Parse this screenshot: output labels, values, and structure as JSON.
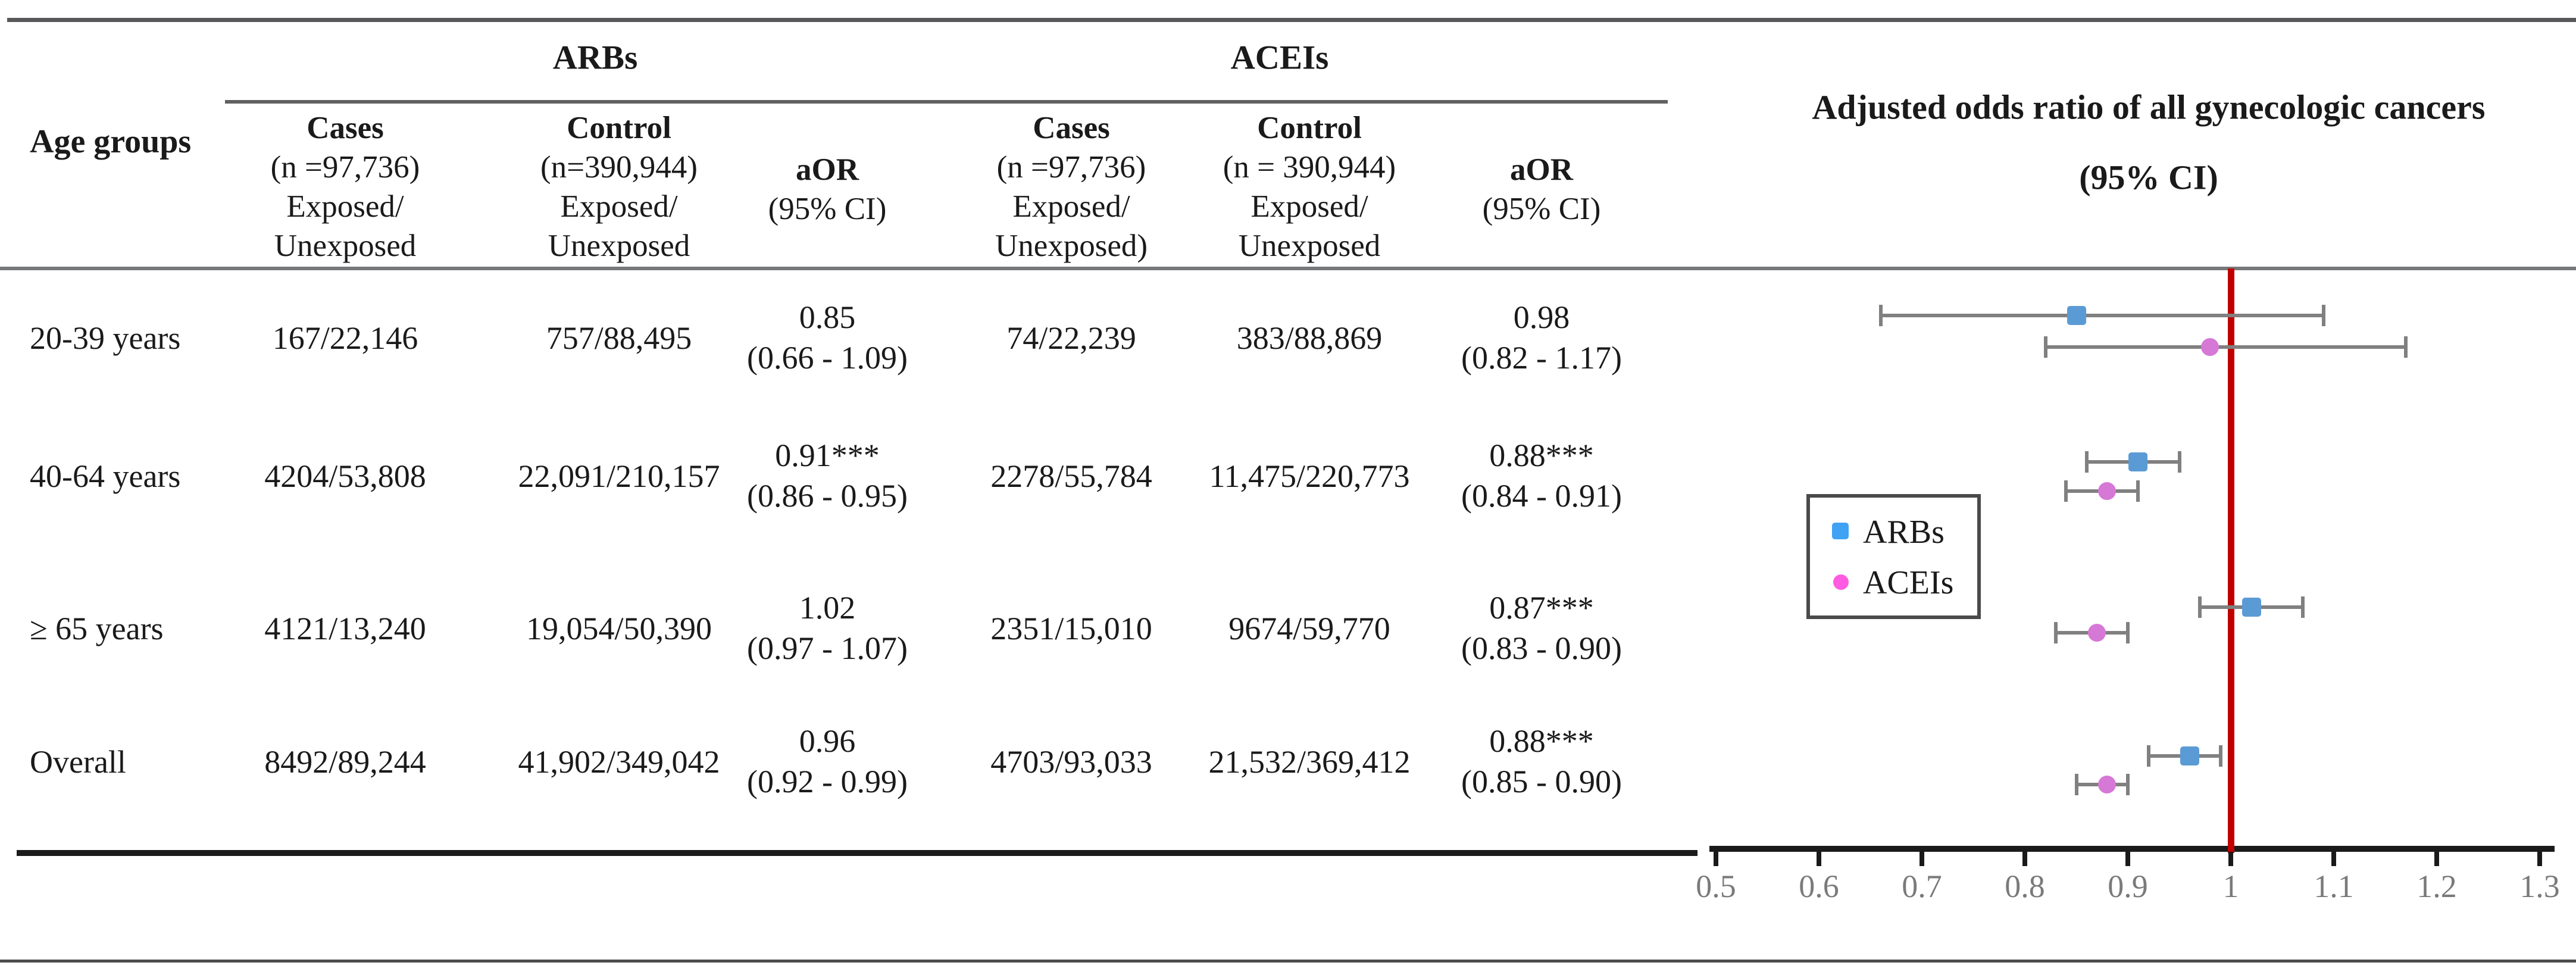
{
  "table": {
    "age_groups_header": "Age groups",
    "group_headers": {
      "arbs": "ARBs",
      "aceis": "ACEIs"
    },
    "columns": {
      "arb_cases": [
        "Cases",
        "(n =97,736)",
        "Exposed/",
        "Unexposed"
      ],
      "arb_control": [
        "Control",
        "(n=390,944)",
        "Exposed/",
        "Unexposed"
      ],
      "arb_aor": [
        "aOR",
        "(95% CI)"
      ],
      "acei_cases": [
        "Cases",
        "(n =97,736)",
        "Exposed/",
        "Unexposed)"
      ],
      "acei_control": [
        "Control",
        "(n = 390,944)",
        "Exposed/",
        "Unexposed"
      ],
      "acei_aor": [
        "aOR",
        "(95% CI)"
      ]
    },
    "rows": [
      {
        "label": "20-39 years",
        "arb_cases": "167/22,146",
        "arb_control": "757/88,495",
        "arb_aor": "0.85",
        "arb_ci": "(0.66 - 1.09)",
        "acei_cases": "74/22,239",
        "acei_control": "383/88,869",
        "acei_aor": "0.98",
        "acei_ci": "(0.82 - 1.17)"
      },
      {
        "label": "40-64 years",
        "arb_cases": "4204/53,808",
        "arb_control": "22,091/210,157",
        "arb_aor": "0.91***",
        "arb_ci": "(0.86 - 0.95)",
        "acei_cases": "2278/55,784",
        "acei_control": "11,475/220,773",
        "acei_aor": "0.88***",
        "acei_ci": "(0.84 - 0.91)"
      },
      {
        "label": "≥ 65 years",
        "arb_cases": "4121/13,240",
        "arb_control": "19,054/50,390",
        "arb_aor": "1.02",
        "arb_ci": "(0.97 - 1.07)",
        "acei_cases": "2351/15,010",
        "acei_control": "9674/59,770",
        "acei_aor": "0.87***",
        "acei_ci": "(0.83 - 0.90)"
      },
      {
        "label": "Overall",
        "arb_cases": "8492/89,244",
        "arb_control": "41,902/349,042",
        "arb_aor": "0.96",
        "arb_ci": "(0.92 - 0.99)",
        "acei_cases": "4703/93,033",
        "acei_control": "21,532/369,412",
        "acei_aor": "0.88***",
        "acei_ci": "(0.85 - 0.90)"
      }
    ]
  },
  "plot": {
    "title_line1": "Adjusted odds ratio of all gynecologic cancers",
    "title_line2": "(95% CI)",
    "legend": [
      {
        "label": "ARBs",
        "marker": "square",
        "swatch_color": "#3fa2f5"
      },
      {
        "label": "ACEIs",
        "marker": "circle",
        "swatch_color": "#ff5be2"
      }
    ]
  },
  "chart_data": {
    "type": "scatter",
    "subtype": "forest",
    "title": "Adjusted odds ratio of all gynecologic cancers (95% CI)",
    "xlabel": "",
    "ylabel": "",
    "x_range": [
      0.5,
      1.3
    ],
    "x_ticks": [
      0.5,
      0.6,
      0.7,
      0.8,
      0.9,
      1,
      1.1,
      1.2,
      1.3
    ],
    "x_tick_labels": [
      "0.5",
      "0.6",
      "0.7",
      "0.8",
      "0.9",
      "1",
      "1.1",
      "1.2",
      "1.3"
    ],
    "reference_line": 1.0,
    "reference_line_color": "#c00000",
    "grid": false,
    "legend_position": "middle-left",
    "categories": [
      "20-39 years",
      "40-64 years",
      "≥ 65 years",
      "Overall"
    ],
    "series": [
      {
        "name": "ARBs",
        "marker": "square",
        "color": "#5b9bd5",
        "values": [
          0.85,
          0.91,
          1.02,
          0.96
        ],
        "ci_low": [
          0.66,
          0.86,
          0.97,
          0.92
        ],
        "ci_high": [
          1.09,
          0.95,
          1.07,
          0.99
        ]
      },
      {
        "name": "ACEIs",
        "marker": "circle",
        "color": "#d678d6",
        "values": [
          0.98,
          0.88,
          0.87,
          0.88
        ],
        "ci_low": [
          0.82,
          0.84,
          0.83,
          0.85
        ],
        "ci_high": [
          1.17,
          0.91,
          0.9,
          0.9
        ]
      }
    ],
    "error_bar_color": "#808080",
    "tick_label_color": "#7a7a7a"
  }
}
